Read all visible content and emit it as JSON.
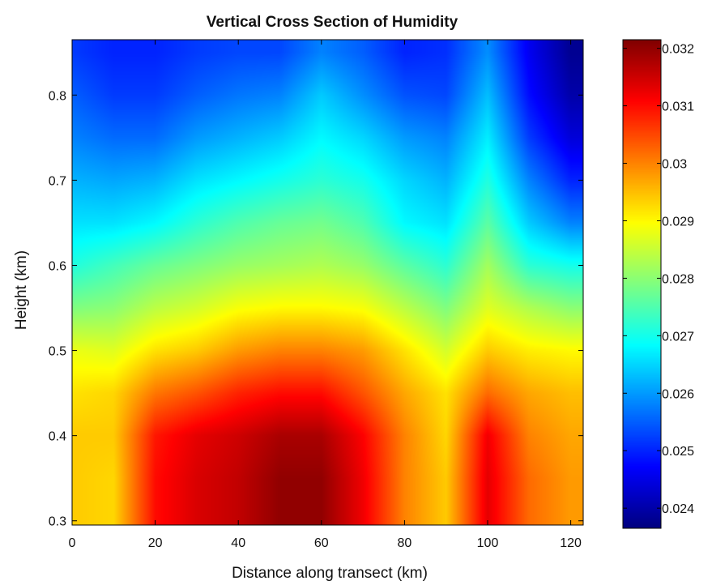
{
  "chart_data": {
    "type": "heatmap",
    "title": "Vertical Cross Section of Humidity",
    "xlabel": "Distance along transect (km)",
    "ylabel": "Height (km)",
    "xlim": [
      0,
      123
    ],
    "ylim": [
      0.295,
      0.865
    ],
    "x_ticks": [
      0,
      20,
      40,
      60,
      80,
      100,
      120
    ],
    "y_ticks": [
      0.3,
      0.4,
      0.5,
      0.6,
      0.7,
      0.8
    ],
    "x_tick_labels": [
      "0",
      "20",
      "40",
      "60",
      "80",
      "100",
      "120"
    ],
    "y_tick_labels": [
      "0.3",
      "0.4",
      "0.5",
      "0.6",
      "0.7",
      "0.8"
    ],
    "colormap": "jet",
    "colorbar": {
      "range": [
        0.02365,
        0.03215
      ],
      "ticks": [
        0.024,
        0.025,
        0.026,
        0.027,
        0.028,
        0.029,
        0.03,
        0.031,
        0.032
      ],
      "tick_labels": [
        "0.024",
        "0.025",
        "0.026",
        "0.027",
        "0.028",
        "0.029",
        "0.03",
        "0.031",
        "0.032"
      ]
    },
    "grid": false,
    "heights": [
      0.3,
      0.35,
      0.4,
      0.45,
      0.5,
      0.55,
      0.6,
      0.65,
      0.7,
      0.75,
      0.8,
      0.85
    ],
    "x": [
      0,
      10,
      20,
      30,
      40,
      50,
      60,
      70,
      80,
      90,
      100,
      110,
      120
    ],
    "z": [
      [
        0.0294,
        0.0293,
        0.031,
        0.0314,
        0.0316,
        0.032,
        0.032,
        0.0312,
        0.03,
        0.0294,
        0.0313,
        0.0302,
        0.0298
      ],
      [
        0.0294,
        0.0293,
        0.031,
        0.0314,
        0.0316,
        0.032,
        0.032,
        0.0312,
        0.03,
        0.0294,
        0.0313,
        0.0302,
        0.0298
      ],
      [
        0.0294,
        0.0294,
        0.0309,
        0.0313,
        0.0315,
        0.0318,
        0.0318,
        0.0311,
        0.03,
        0.0293,
        0.0312,
        0.03,
        0.0297
      ],
      [
        0.0292,
        0.0293,
        0.0301,
        0.0304,
        0.0308,
        0.031,
        0.031,
        0.0304,
        0.0297,
        0.0292,
        0.0302,
        0.0297,
        0.0295
      ],
      [
        0.0288,
        0.0287,
        0.0292,
        0.0294,
        0.0298,
        0.03,
        0.03,
        0.0298,
        0.0292,
        0.0286,
        0.0294,
        0.0291,
        0.029
      ],
      [
        0.0279,
        0.028,
        0.0284,
        0.0286,
        0.0289,
        0.029,
        0.029,
        0.0289,
        0.0284,
        0.0279,
        0.0287,
        0.0283,
        0.028
      ],
      [
        0.0271,
        0.0274,
        0.0277,
        0.0279,
        0.0281,
        0.0282,
        0.0283,
        0.0281,
        0.0276,
        0.0272,
        0.0282,
        0.0272,
        0.027
      ],
      [
        0.0266,
        0.0266,
        0.0268,
        0.0272,
        0.0275,
        0.0277,
        0.0278,
        0.0275,
        0.0268,
        0.0266,
        0.0276,
        0.0264,
        0.0258
      ],
      [
        0.0262,
        0.0261,
        0.0262,
        0.0266,
        0.0268,
        0.027,
        0.0272,
        0.027,
        0.0265,
        0.0262,
        0.0271,
        0.0258,
        0.025
      ],
      [
        0.0258,
        0.0256,
        0.0256,
        0.026,
        0.0262,
        0.0264,
        0.0268,
        0.0265,
        0.026,
        0.0258,
        0.0267,
        0.0252,
        0.0244
      ],
      [
        0.0255,
        0.0252,
        0.0252,
        0.0255,
        0.0257,
        0.0258,
        0.0264,
        0.0259,
        0.0254,
        0.0253,
        0.0263,
        0.0248,
        0.024
      ],
      [
        0.0252,
        0.025,
        0.025,
        0.0252,
        0.0253,
        0.0253,
        0.0258,
        0.0255,
        0.025,
        0.0251,
        0.0259,
        0.0246,
        0.0238
      ]
    ]
  }
}
